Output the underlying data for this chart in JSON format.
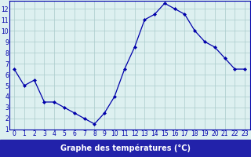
{
  "hours": [
    0,
    1,
    2,
    3,
    4,
    5,
    6,
    7,
    8,
    9,
    10,
    11,
    12,
    13,
    14,
    15,
    16,
    17,
    18,
    19,
    20,
    21,
    22,
    23
  ],
  "temps": [
    6.5,
    5.0,
    5.5,
    3.5,
    3.5,
    3.0,
    2.5,
    2.0,
    1.5,
    2.5,
    4.0,
    6.5,
    8.5,
    11.0,
    11.5,
    12.5,
    12.0,
    11.5,
    10.0,
    9.0,
    8.5,
    7.5,
    6.5,
    6.5
  ],
  "line_color": "#0000aa",
  "marker": "D",
  "markersize": 2.0,
  "linewidth": 0.9,
  "bg_color": "#ddf0f0",
  "grid_color": "#aacccc",
  "tick_label_color": "#0000aa",
  "xlabel": "Graphe des températures (°C)",
  "xlim": [
    -0.5,
    23.5
  ],
  "ylim": [
    1,
    12.7
  ],
  "yticks": [
    1,
    2,
    3,
    4,
    5,
    6,
    7,
    8,
    9,
    10,
    11,
    12
  ],
  "xticks": [
    0,
    1,
    2,
    3,
    4,
    5,
    6,
    7,
    8,
    9,
    10,
    11,
    12,
    13,
    14,
    15,
    16,
    17,
    18,
    19,
    20,
    21,
    22,
    23
  ],
  "xlabel_bg": "#2222aa",
  "xlabel_fg": "#ffffff",
  "fontsize_ticks": 5.5,
  "fontsize_xlabel": 7.0
}
